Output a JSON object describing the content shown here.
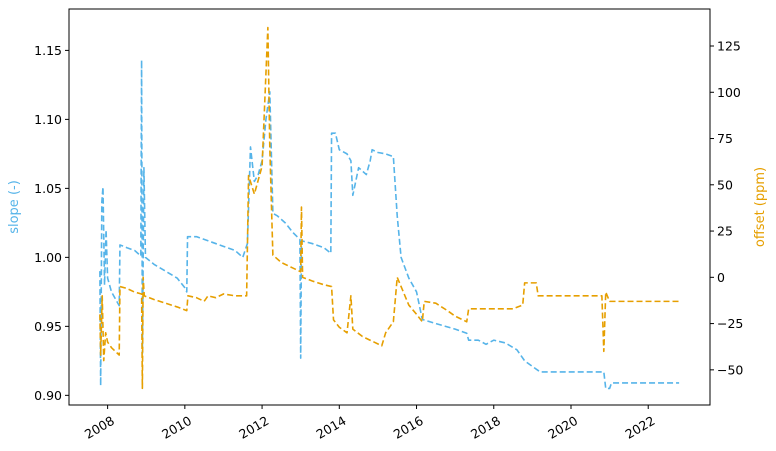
{
  "chart_data": {
    "type": "line",
    "xlabel": "",
    "x_ticks": [
      "2008",
      "2010",
      "2012",
      "2014",
      "2016",
      "2018",
      "2020",
      "2022"
    ],
    "xlim": [
      2007.0,
      2023.6
    ],
    "y_left": {
      "label": "slope (-)",
      "color": "#56b4e9",
      "lim": [
        0.893,
        1.18
      ],
      "ticks": [
        "0.90",
        "0.95",
        "1.00",
        "1.05",
        "1.10",
        "1.15"
      ]
    },
    "y_right": {
      "label": "offset (ppm)",
      "color": "#e69f00",
      "lim": [
        -69,
        145
      ],
      "ticks": [
        "−50",
        "−25",
        "0",
        "25",
        "50",
        "75",
        "100",
        "125"
      ]
    },
    "series": [
      {
        "axis": "left",
        "color": "#56b4e9",
        "style": "dashed",
        "points": [
          [
            2007.8,
            0.99
          ],
          [
            2007.82,
            0.907
          ],
          [
            2007.85,
            1.04
          ],
          [
            2007.88,
            1.051
          ],
          [
            2007.92,
            0.98
          ],
          [
            2007.96,
            1.02
          ],
          [
            2008.0,
            0.985
          ],
          [
            2008.1,
            0.975
          ],
          [
            2008.2,
            0.97
          ],
          [
            2008.3,
            0.965
          ],
          [
            2008.32,
            1.009
          ],
          [
            2008.5,
            1.007
          ],
          [
            2008.7,
            1.005
          ],
          [
            2008.86,
            1.001
          ],
          [
            2008.88,
            1.143
          ],
          [
            2008.9,
            0.93
          ],
          [
            2008.94,
            1.065
          ],
          [
            2008.98,
            1.0
          ],
          [
            2009.2,
            0.995
          ],
          [
            2009.5,
            0.99
          ],
          [
            2009.8,
            0.985
          ],
          [
            2010.0,
            0.978
          ],
          [
            2010.05,
            0.975
          ],
          [
            2010.07,
            1.015
          ],
          [
            2010.3,
            1.015
          ],
          [
            2010.6,
            1.012
          ],
          [
            2010.8,
            1.01
          ],
          [
            2011.0,
            1.008
          ],
          [
            2011.3,
            1.005
          ],
          [
            2011.5,
            1.0
          ],
          [
            2011.62,
            1.01
          ],
          [
            2011.7,
            1.08
          ],
          [
            2011.8,
            1.055
          ],
          [
            2011.9,
            1.06
          ],
          [
            2012.0,
            1.07
          ],
          [
            2012.1,
            1.1
          ],
          [
            2012.2,
            1.12
          ],
          [
            2012.28,
            1.032
          ],
          [
            2012.4,
            1.03
          ],
          [
            2012.6,
            1.025
          ],
          [
            2012.8,
            1.018
          ],
          [
            2012.98,
            1.013
          ],
          [
            2013.0,
            0.927
          ],
          [
            2013.02,
            1.012
          ],
          [
            2013.3,
            1.01
          ],
          [
            2013.6,
            1.007
          ],
          [
            2013.78,
            1.003
          ],
          [
            2013.8,
            1.09
          ],
          [
            2013.9,
            1.09
          ],
          [
            2014.0,
            1.078
          ],
          [
            2014.2,
            1.075
          ],
          [
            2014.3,
            1.07
          ],
          [
            2014.35,
            1.045
          ],
          [
            2014.5,
            1.065
          ],
          [
            2014.7,
            1.06
          ],
          [
            2014.8,
            1.07
          ],
          [
            2014.85,
            1.078
          ],
          [
            2015.0,
            1.076
          ],
          [
            2015.2,
            1.075
          ],
          [
            2015.4,
            1.073
          ],
          [
            2015.5,
            1.03
          ],
          [
            2015.6,
            1.0
          ],
          [
            2015.8,
            0.985
          ],
          [
            2016.0,
            0.975
          ],
          [
            2016.15,
            0.955
          ],
          [
            2016.5,
            0.952
          ],
          [
            2017.0,
            0.948
          ],
          [
            2017.3,
            0.945
          ],
          [
            2017.35,
            0.94
          ],
          [
            2017.6,
            0.94
          ],
          [
            2017.8,
            0.937
          ],
          [
            2018.0,
            0.94
          ],
          [
            2018.3,
            0.938
          ],
          [
            2018.6,
            0.933
          ],
          [
            2018.8,
            0.925
          ],
          [
            2019.2,
            0.917
          ],
          [
            2019.8,
            0.917
          ],
          [
            2020.5,
            0.917
          ],
          [
            2020.85,
            0.917
          ],
          [
            2020.9,
            0.905
          ],
          [
            2021.0,
            0.905
          ],
          [
            2021.05,
            0.909
          ],
          [
            2022.0,
            0.909
          ],
          [
            2022.8,
            0.909
          ]
        ]
      },
      {
        "axis": "right",
        "color": "#e69f00",
        "style": "dashed",
        "points": [
          [
            2007.8,
            -20
          ],
          [
            2007.82,
            -42
          ],
          [
            2007.86,
            -10
          ],
          [
            2007.9,
            -45
          ],
          [
            2007.95,
            -30
          ],
          [
            2008.0,
            -35
          ],
          [
            2008.1,
            -38
          ],
          [
            2008.2,
            -40
          ],
          [
            2008.3,
            -42
          ],
          [
            2008.32,
            -5
          ],
          [
            2008.5,
            -6
          ],
          [
            2008.7,
            -8
          ],
          [
            2008.88,
            -9
          ],
          [
            2008.9,
            -60
          ],
          [
            2008.92,
            0
          ],
          [
            2008.95,
            -10
          ],
          [
            2009.2,
            -12
          ],
          [
            2009.5,
            -14
          ],
          [
            2009.8,
            -16
          ],
          [
            2010.05,
            -18
          ],
          [
            2010.08,
            -10
          ],
          [
            2010.3,
            -11
          ],
          [
            2010.5,
            -13
          ],
          [
            2010.6,
            -10
          ],
          [
            2010.8,
            -11
          ],
          [
            2011.0,
            -9
          ],
          [
            2011.3,
            -10
          ],
          [
            2011.6,
            -10
          ],
          [
            2011.65,
            55
          ],
          [
            2011.8,
            45
          ],
          [
            2012.0,
            60
          ],
          [
            2012.1,
            110
          ],
          [
            2012.15,
            135
          ],
          [
            2012.2,
            70
          ],
          [
            2012.28,
            12
          ],
          [
            2012.5,
            8
          ],
          [
            2012.8,
            5
          ],
          [
            2013.0,
            3
          ],
          [
            2013.02,
            38
          ],
          [
            2013.05,
            0
          ],
          [
            2013.3,
            -2
          ],
          [
            2013.6,
            -4
          ],
          [
            2013.8,
            -5
          ],
          [
            2013.85,
            -23
          ],
          [
            2014.0,
            -27
          ],
          [
            2014.2,
            -30
          ],
          [
            2014.3,
            -10
          ],
          [
            2014.35,
            -28
          ],
          [
            2014.6,
            -32
          ],
          [
            2014.9,
            -35
          ],
          [
            2015.1,
            -37
          ],
          [
            2015.2,
            -30
          ],
          [
            2015.4,
            -24
          ],
          [
            2015.5,
            0
          ],
          [
            2015.6,
            -5
          ],
          [
            2015.8,
            -15
          ],
          [
            2016.0,
            -20
          ],
          [
            2016.15,
            -24
          ],
          [
            2016.2,
            -13
          ],
          [
            2016.5,
            -14
          ],
          [
            2016.8,
            -18
          ],
          [
            2017.0,
            -21
          ],
          [
            2017.3,
            -24
          ],
          [
            2017.35,
            -17
          ],
          [
            2017.8,
            -17
          ],
          [
            2018.2,
            -17
          ],
          [
            2018.5,
            -17
          ],
          [
            2018.75,
            -15
          ],
          [
            2018.8,
            -3
          ],
          [
            2019.1,
            -3
          ],
          [
            2019.15,
            -10
          ],
          [
            2019.8,
            -10
          ],
          [
            2020.5,
            -10
          ],
          [
            2020.8,
            -10
          ],
          [
            2020.85,
            -40
          ],
          [
            2020.9,
            -8
          ],
          [
            2021.0,
            -13
          ],
          [
            2021.1,
            -13
          ],
          [
            2022.0,
            -13
          ],
          [
            2022.8,
            -13
          ]
        ]
      }
    ]
  }
}
